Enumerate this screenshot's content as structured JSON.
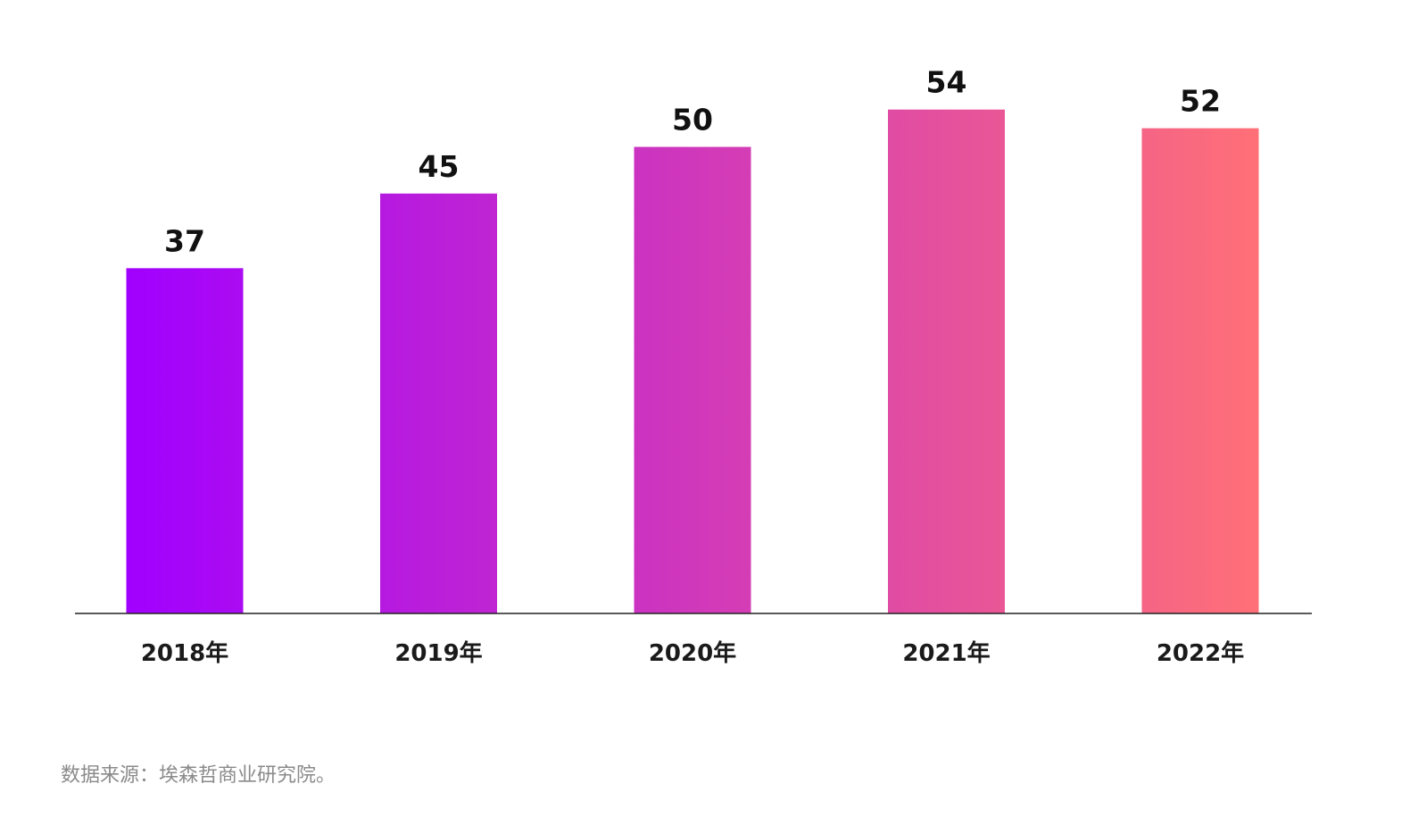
{
  "chart_data": {
    "type": "bar",
    "categories": [
      "2018年",
      "2019年",
      "2020年",
      "2021年",
      "2022年"
    ],
    "values": [
      37,
      45,
      50,
      54,
      52
    ],
    "data_labels": [
      "37",
      "45",
      "50",
      "54",
      "52"
    ],
    "colors": {
      "gradient_start": "#a100ff",
      "gradient_end": "#ff7077"
    },
    "title": "",
    "xlabel": "",
    "ylabel": "",
    "ylim": [
      0,
      60
    ],
    "grid": false,
    "legend": "none"
  },
  "source_note": "数据来源：埃森哲商业研究院。"
}
